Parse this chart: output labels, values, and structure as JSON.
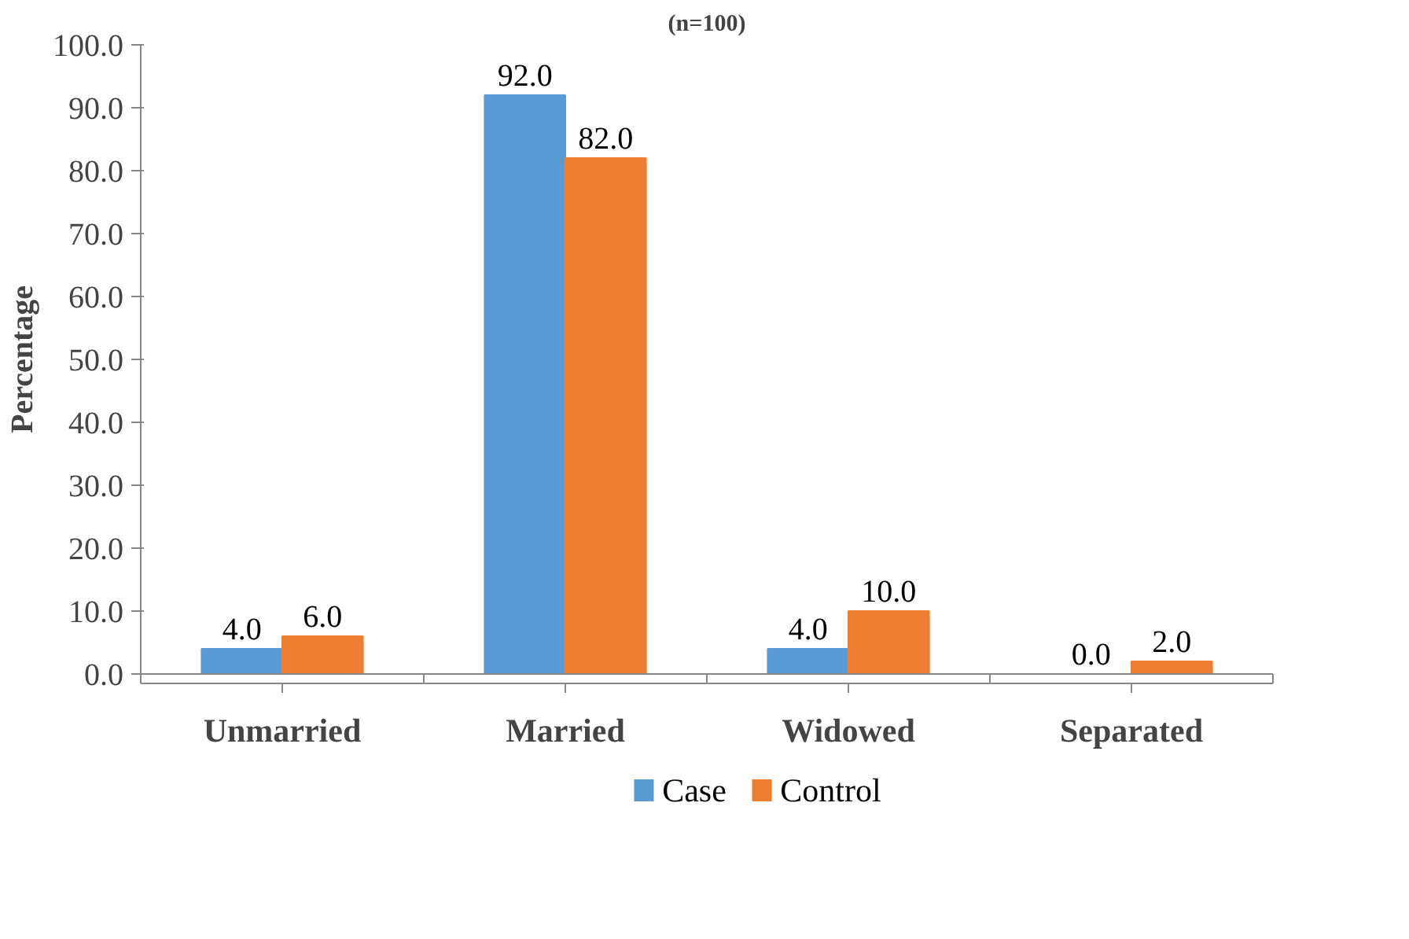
{
  "chart_data": {
    "type": "bar",
    "title": "(n=100)",
    "ylabel": "Percentage",
    "categories": [
      "Unmarried",
      "Married",
      "Widowed",
      "Separated"
    ],
    "series": [
      {
        "name": "Case",
        "color": "#5b9bd5",
        "values": [
          4,
          92,
          4,
          0
        ],
        "value_labels": [
          "4.0",
          "92.0",
          "4.0",
          "0.0"
        ]
      },
      {
        "name": "Control",
        "color": "#ed7d31",
        "values": [
          6,
          82,
          10,
          2
        ],
        "value_labels": [
          "6.0",
          "82.0",
          "10.0",
          "2.0"
        ]
      }
    ],
    "ylim": [
      0,
      100
    ],
    "yticks": [
      {
        "value": 0,
        "label": "0.0"
      },
      {
        "value": 10,
        "label": "10.0"
      },
      {
        "value": 20,
        "label": "20.0"
      },
      {
        "value": 30,
        "label": "30.0"
      },
      {
        "value": 40,
        "label": "40.0"
      },
      {
        "value": 50,
        "label": "50.0"
      },
      {
        "value": 60,
        "label": "60.0"
      },
      {
        "value": 70,
        "label": "70.0"
      },
      {
        "value": 80,
        "label": "80.0"
      },
      {
        "value": 90,
        "label": "90.0"
      },
      {
        "value": 100,
        "label": "100.0"
      }
    ],
    "grid": false,
    "legend": "bottom"
  }
}
